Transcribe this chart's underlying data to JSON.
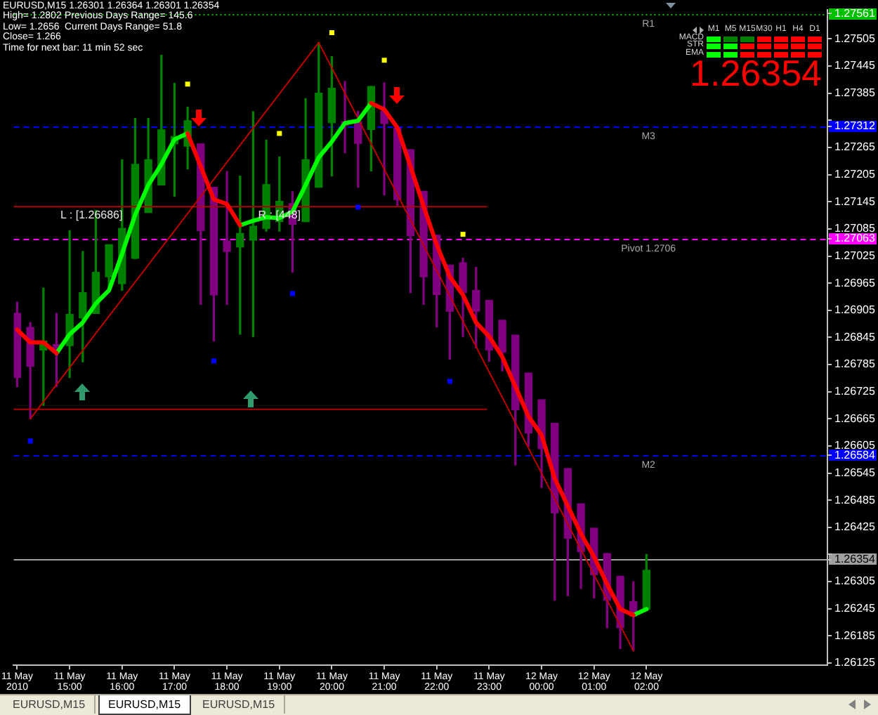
{
  "chart_data": {
    "type": "candlestick",
    "title": "EURUSD,M15 1.26301 1.26364 1.26301 1.26354",
    "x": [
      "2010-05-11T14:00",
      "2010-05-11T14:15",
      "2010-05-11T14:30",
      "2010-05-11T14:45",
      "2010-05-11T15:00",
      "2010-05-11T15:15",
      "2010-05-11T15:30",
      "2010-05-11T15:45",
      "2010-05-11T16:00",
      "2010-05-11T16:15",
      "2010-05-11T16:30",
      "2010-05-11T16:45",
      "2010-05-11T17:00",
      "2010-05-11T17:15",
      "2010-05-11T17:30",
      "2010-05-11T17:45",
      "2010-05-11T18:00",
      "2010-05-11T18:15",
      "2010-05-11T18:30",
      "2010-05-11T18:45",
      "2010-05-11T19:00",
      "2010-05-11T19:15",
      "2010-05-11T19:30",
      "2010-05-11T19:45",
      "2010-05-11T20:00",
      "2010-05-11T20:15",
      "2010-05-11T20:30",
      "2010-05-11T20:45",
      "2010-05-11T21:00",
      "2010-05-11T21:15",
      "2010-05-11T21:30",
      "2010-05-11T21:45",
      "2010-05-11T22:00",
      "2010-05-11T22:15",
      "2010-05-11T22:30",
      "2010-05-11T22:45",
      "2010-05-11T23:00",
      "2010-05-11T23:15",
      "2010-05-11T23:30",
      "2010-05-11T23:45",
      "2010-05-12T00:00",
      "2010-05-12T00:15",
      "2010-05-12T00:30",
      "2010-05-12T00:45",
      "2010-05-12T01:00",
      "2010-05-12T01:15",
      "2010-05-12T01:30",
      "2010-05-12T01:45",
      "2010-05-12T02:00"
    ],
    "ohlc": [
      [
        1.26898,
        1.26923,
        1.26736,
        1.26756
      ],
      [
        1.26867,
        1.26878,
        1.26665,
        1.26781
      ],
      [
        1.26817,
        1.26954,
        1.26695,
        1.26837
      ],
      [
        1.26829,
        1.26898,
        1.26736,
        1.26817
      ],
      [
        1.26827,
        1.27081,
        1.26756,
        1.26896
      ],
      [
        1.26888,
        1.27035,
        1.26791,
        1.26944
      ],
      [
        1.26898,
        1.27126,
        1.26898,
        1.26989
      ],
      [
        1.26979,
        1.2705,
        1.26949,
        1.2705
      ],
      [
        1.26964,
        1.27238,
        1.26949,
        1.27086
      ],
      [
        1.2702,
        1.27329,
        1.2702,
        1.27228
      ],
      [
        1.27121,
        1.27329,
        1.27121,
        1.27238
      ],
      [
        1.27182,
        1.27469,
        1.27182,
        1.27304
      ],
      [
        1.27273,
        1.27407,
        1.27157,
        1.27289
      ],
      [
        1.27268,
        1.27354,
        1.27218,
        1.27324
      ],
      [
        1.27273,
        1.27273,
        1.26918,
        1.27081
      ],
      [
        1.27177,
        1.27177,
        1.26837,
        1.26939
      ],
      [
        1.27058,
        1.27212,
        1.26918,
        1.27035
      ],
      [
        1.27045,
        1.27202,
        1.26852,
        1.27075
      ],
      [
        1.2706,
        1.27344,
        1.26847,
        1.27091
      ],
      [
        1.27086,
        1.27281,
        1.2708,
        1.27183
      ],
      [
        1.27101,
        1.27244,
        1.2708,
        1.27146
      ],
      [
        1.27141,
        1.27167,
        1.26989,
        1.27095
      ],
      [
        1.27101,
        1.27373,
        1.27101,
        1.27238
      ],
      [
        1.27177,
        1.27497,
        1.27177,
        1.27385
      ],
      [
        1.2732,
        1.27466,
        1.27202,
        1.27396
      ],
      [
        1.27322,
        1.27411,
        1.27253,
        1.27314
      ],
      [
        1.27322,
        1.27345,
        1.27177,
        1.27274
      ],
      [
        1.27305,
        1.274,
        1.27213,
        1.274
      ],
      [
        1.27345,
        1.27408,
        1.2716,
        1.27318
      ],
      [
        1.27308,
        1.27308,
        1.27137,
        1.2715
      ],
      [
        1.2726,
        1.2726,
        1.26944,
        1.2707
      ],
      [
        1.27168,
        1.27168,
        1.26918,
        1.26979
      ],
      [
        1.27071,
        1.27071,
        1.26868,
        1.2694
      ],
      [
        1.27005,
        1.27005,
        1.26797,
        1.26903
      ],
      [
        1.2701,
        1.2702,
        1.26847,
        1.26944
      ],
      [
        1.26949,
        1.27,
        1.26822,
        1.26903
      ],
      [
        1.26927,
        1.26927,
        1.26792,
        1.26817
      ],
      [
        1.26883,
        1.26883,
        1.26771,
        1.26812
      ],
      [
        1.2685,
        1.2685,
        1.26563,
        1.26685
      ],
      [
        1.26766,
        1.26766,
        1.26604,
        1.26634
      ],
      [
        1.26707,
        1.26707,
        1.26513,
        1.26599
      ],
      [
        1.26655,
        1.26655,
        1.26264,
        1.26457
      ],
      [
        1.26555,
        1.26555,
        1.26274,
        1.26401
      ],
      [
        1.26477,
        1.26477,
        1.2629,
        1.26371
      ],
      [
        1.26423,
        1.26423,
        1.26269,
        1.2632
      ],
      [
        1.26367,
        1.26367,
        1.26203,
        1.26264
      ],
      [
        1.26317,
        1.26317,
        1.26157,
        1.26203
      ],
      [
        1.26261,
        1.26305,
        1.26152,
        1.26229
      ],
      [
        1.26244,
        1.26365,
        1.26244,
        1.2633
      ]
    ],
    "colors": [
      "#800080",
      "#800080",
      "#008000",
      "#800080",
      "#008000",
      "#008000",
      "#008000",
      "#008000",
      "#008000",
      "#008000",
      "#008000",
      "#008000",
      "#008000",
      "#008000",
      "#800080",
      "#800080",
      "#800080",
      "#008000",
      "#008000",
      "#008000",
      "#008000",
      "#800080",
      "#008000",
      "#008000",
      "#008000",
      "#800080",
      "#800080",
      "#008000",
      "#800080",
      "#800080",
      "#800080",
      "#800080",
      "#800080",
      "#800080",
      "#800080",
      "#800080",
      "#800080",
      "#800080",
      "#800080",
      "#800080",
      "#800080",
      "#800080",
      "#800080",
      "#800080",
      "#800080",
      "#800080",
      "#800080",
      "#800080",
      "#008000"
    ],
    "series": [
      {
        "type": "line",
        "color": "#ff0000",
        "values": [
          1.26862,
          1.26834,
          1.26834,
          1.2681,
          null,
          null,
          null,
          null,
          null,
          null,
          null,
          null,
          null,
          1.27296,
          1.27223,
          1.2715,
          1.2714,
          1.27093,
          null,
          null,
          null,
          null,
          null,
          null,
          null,
          null,
          null,
          1.27363,
          1.27349,
          1.27309,
          1.27223,
          1.27135,
          1.2705,
          1.26979,
          1.26939,
          1.26878,
          1.26847,
          1.26802,
          1.26736,
          1.2667,
          1.26629,
          1.26533,
          1.26472,
          1.26411,
          1.2636,
          1.26299,
          1.26244,
          1.26231,
          null
        ]
      },
      {
        "type": "line",
        "color": "#00ff00",
        "values": [
          null,
          null,
          null,
          1.2681,
          1.26852,
          1.26878,
          1.2692,
          1.26949,
          1.2703,
          1.27116,
          1.27182,
          1.27228,
          1.27283,
          1.27296,
          null,
          null,
          null,
          1.27093,
          1.27103,
          1.27111,
          1.27109,
          1.27123,
          1.27182,
          1.27243,
          1.27278,
          1.27319,
          1.27324,
          1.27363,
          null,
          null,
          null,
          null,
          null,
          null,
          null,
          null,
          null,
          null,
          null,
          null,
          null,
          null,
          null,
          null,
          null,
          null,
          null,
          1.26231,
          1.26244
        ]
      },
      {
        "type": "line",
        "color": "#c00000",
        "x": [
          "2010-05-11T14:15",
          "2010-05-11T19:45",
          "2010-05-12T01:45"
        ],
        "values": [
          1.26665,
          1.27497,
          1.26152
        ]
      },
      {
        "type": "line",
        "color": "#b00000",
        "x": [
          "2010-05-11T13:56",
          "2010-05-11T22:57"
        ],
        "values": [
          1.27134,
          1.27134
        ]
      },
      {
        "type": "line",
        "color": "#b00000",
        "x": [
          "2010-05-11T13:56",
          "2010-05-11T22:57"
        ],
        "values": [
          1.26686,
          1.26686
        ]
      },
      {
        "type": "scatter",
        "color": "#ffff00",
        "marker": "square",
        "x": [
          "2010-05-11T17:15",
          "2010-05-11T19:00",
          "2010-05-11T20:00",
          "2010-05-11T21:00",
          "2010-05-11T22:30"
        ],
        "values": [
          1.27405,
          1.27296,
          1.27519,
          1.27458,
          1.27073
        ]
      },
      {
        "type": "scatter",
        "color": "#0000ff",
        "marker": "square",
        "x": [
          "2010-05-11T14:15",
          "2010-05-11T17:45",
          "2010-05-11T19:15",
          "2010-05-11T20:30",
          "2010-05-11T22:15"
        ],
        "values": [
          1.26616,
          1.26793,
          1.26942,
          1.27133,
          1.26748
        ]
      }
    ],
    "xlim": [
      "2010-05-11T13:56",
      "2010-05-12T05:27"
    ],
    "xticks": [
      {
        "value": "2010-05-11T14:00",
        "label": "11 May 2010"
      },
      {
        "value": "2010-05-11T15:00",
        "label": "11 May 15:00"
      },
      {
        "value": "2010-05-11T16:00",
        "label": "11 May 16:00"
      },
      {
        "value": "2010-05-11T17:00",
        "label": "11 May 17:00"
      },
      {
        "value": "2010-05-11T18:00",
        "label": "11 May 18:00"
      },
      {
        "value": "2010-05-11T19:00",
        "label": "11 May 19:00"
      },
      {
        "value": "2010-05-11T20:00",
        "label": "11 May 20:00"
      },
      {
        "value": "2010-05-11T21:00",
        "label": "11 May 21:00"
      },
      {
        "value": "2010-05-11T22:00",
        "label": "11 May 22:00"
      },
      {
        "value": "2010-05-11T23:00",
        "label": "11 May 23:00"
      },
      {
        "value": "2010-05-12T00:00",
        "label": "12 May 00:00"
      },
      {
        "value": "2010-05-12T01:00",
        "label": "12 May 01:00"
      },
      {
        "value": "2010-05-12T02:00",
        "label": "12 May 02:00"
      }
    ],
    "ylim": [
      1.2612,
      1.2757
    ],
    "yticks": [
      1.26125,
      1.26185,
      1.26245,
      1.26305,
      1.26354,
      {
        "value": 1.26365,
        "label": null
      },
      1.26425,
      1.26485,
      1.26545,
      1.26584,
      1.26605,
      1.26665,
      1.26725,
      1.26785,
      1.26845,
      1.26905,
      1.26965,
      1.27025,
      1.27063,
      1.27085,
      1.27145,
      1.27205,
      1.27265,
      1.27312,
      {
        "value": 1.27325,
        "label": null
      },
      1.27385,
      1.27445,
      1.27505,
      1.27561
    ],
    "ref_lines": [
      {
        "axis": "y",
        "value": 1.27561,
        "label": "R1",
        "color": "#00c000",
        "line_style": "dotted"
      },
      {
        "axis": "y",
        "value": 1.27312,
        "label": "M3",
        "color": "#0000ff",
        "line_style": "dashed"
      },
      {
        "axis": "y",
        "value": 1.27063,
        "label": "Pivot 1.2706",
        "color": "#ff00ff",
        "line_style": "dashed"
      },
      {
        "axis": "y",
        "value": 1.26584,
        "label": "M2",
        "color": "#0000ff",
        "line_style": "dashed"
      },
      {
        "axis": "y",
        "value": 1.26354,
        "color": "#a0a0a0"
      }
    ],
    "annotations": [
      "High= 1.2802",
      "Previous Days Range= 145.6",
      "Low= 1.2656",
      "Current Days Range= 51.8",
      "Close= 1.266",
      "Time for next bar: 11 min 52 sec",
      "M1",
      "M5",
      "M15",
      "M30",
      "H1",
      "H4",
      "D1",
      "MACD",
      "STR",
      "EMA",
      "1.26354",
      "EURUSD,M15",
      "EURUSD,M15",
      "EURUSD,M15",
      {
        "text": "L : [1.26686]",
        "x": "2010-05-11T15:25",
        "y": 1.27134
      },
      {
        "text": "R : [448]",
        "x": "2010-05-11T19:00",
        "y": 1.27134
      }
    ]
  }
}
